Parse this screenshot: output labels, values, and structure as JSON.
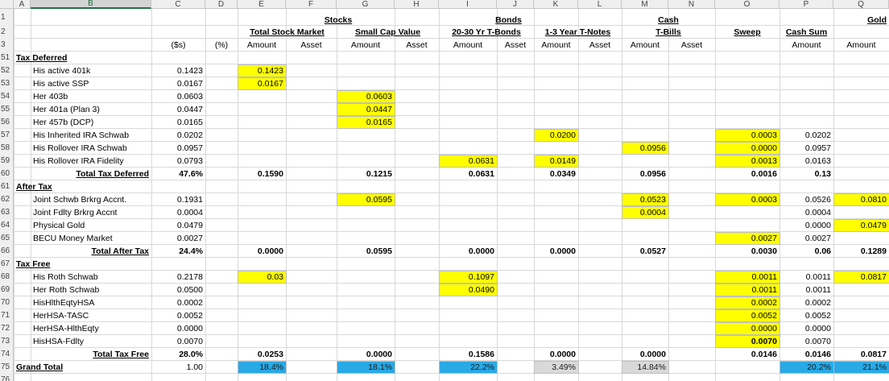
{
  "columns": [
    "A",
    "B",
    "C",
    "D",
    "E",
    "F",
    "G",
    "H",
    "I",
    "J",
    "K",
    "L",
    "M",
    "N",
    "O",
    "P",
    "Q"
  ],
  "selected_column": "B",
  "rows": [
    {
      "row": "1",
      "cells": [
        {
          "col": "E",
          "to": "H",
          "text": "Stocks",
          "bold": true,
          "underline": true,
          "align": "center"
        },
        {
          "col": "I",
          "to": "K",
          "text": "Bonds",
          "bold": true,
          "underline": true,
          "align": "center"
        },
        {
          "col": "M",
          "to": "N",
          "text": "Cash",
          "bold": true,
          "underline": true,
          "align": "center"
        },
        {
          "col": "Q",
          "text": "Gold",
          "bold": true,
          "underline": true,
          "align": "right"
        }
      ]
    },
    {
      "row": "2",
      "cells": [
        {
          "col": "E",
          "to": "F",
          "text": "Total Stock Market",
          "bold": true,
          "underline": true,
          "align": "center"
        },
        {
          "col": "G",
          "to": "H",
          "text": "Small Cap Value",
          "bold": true,
          "underline": true,
          "align": "center"
        },
        {
          "col": "I",
          "to": "J",
          "text": "20-30 Yr T-Bonds",
          "bold": true,
          "underline": true,
          "align": "center"
        },
        {
          "col": "K",
          "to": "L",
          "text": "1-3 Year T-Notes",
          "bold": true,
          "underline": true,
          "align": "center"
        },
        {
          "col": "M",
          "to": "N",
          "text": "T-Bills",
          "bold": true,
          "underline": true,
          "align": "center"
        },
        {
          "col": "O",
          "text": "Sweep",
          "bold": true,
          "underline": true,
          "align": "center"
        },
        {
          "col": "P",
          "text": "Cash Sum",
          "bold": true,
          "underline": true,
          "align": "center"
        }
      ]
    },
    {
      "row": "3",
      "cells": [
        {
          "col": "C",
          "text": "($s)",
          "align": "center"
        },
        {
          "col": "D",
          "text": "(%)",
          "align": "center"
        },
        {
          "col": "E",
          "text": "Amount",
          "align": "center"
        },
        {
          "col": "F",
          "text": "Asset",
          "align": "center"
        },
        {
          "col": "G",
          "text": "Amount",
          "align": "center"
        },
        {
          "col": "H",
          "text": "Asset",
          "align": "center"
        },
        {
          "col": "I",
          "text": "Amount",
          "align": "center"
        },
        {
          "col": "J",
          "text": "Asset",
          "align": "center"
        },
        {
          "col": "K",
          "text": "Amount",
          "align": "center"
        },
        {
          "col": "L",
          "text": "Asset",
          "align": "center"
        },
        {
          "col": "M",
          "text": "Amount",
          "align": "center"
        },
        {
          "col": "N",
          "text": "Asset",
          "align": "center"
        },
        {
          "col": "P",
          "text": "Amount",
          "align": "center"
        },
        {
          "col": "Q",
          "text": "Amount",
          "align": "center"
        }
      ]
    },
    {
      "row": "51",
      "cells": [
        {
          "col": "A",
          "text": "Tax Deferred",
          "bold": true,
          "underline": true
        }
      ]
    },
    {
      "row": "52",
      "cells": [
        {
          "col": "B",
          "text": "His active 401k"
        },
        {
          "col": "C",
          "text": "0.1423"
        },
        {
          "col": "E",
          "text": "0.1423",
          "fill": "#ffff00"
        }
      ]
    },
    {
      "row": "53",
      "cells": [
        {
          "col": "B",
          "text": "His active SSP"
        },
        {
          "col": "C",
          "text": "0.0167"
        },
        {
          "col": "E",
          "text": "0.0167",
          "fill": "#ffff00"
        }
      ]
    },
    {
      "row": "54",
      "cells": [
        {
          "col": "B",
          "text": "Her 403b"
        },
        {
          "col": "C",
          "text": "0.0603"
        },
        {
          "col": "G",
          "text": "0.0603",
          "fill": "#ffff00"
        }
      ]
    },
    {
      "row": "55",
      "cells": [
        {
          "col": "B",
          "text": "Her 401a (Plan 3)"
        },
        {
          "col": "C",
          "text": "0.0447"
        },
        {
          "col": "G",
          "text": "0.0447",
          "fill": "#ffff00"
        }
      ]
    },
    {
      "row": "56",
      "cells": [
        {
          "col": "B",
          "text": "Her 457b (DCP)"
        },
        {
          "col": "C",
          "text": "0.0165"
        },
        {
          "col": "G",
          "text": "0.0165",
          "fill": "#ffff00"
        }
      ]
    },
    {
      "row": "57",
      "cells": [
        {
          "col": "B",
          "text": "His Inherited IRA Schwab"
        },
        {
          "col": "C",
          "text": "0.0202"
        },
        {
          "col": "K",
          "text": "0.0200",
          "fill": "#ffff00"
        },
        {
          "col": "O",
          "text": "0.0003",
          "fill": "#ffff00"
        },
        {
          "col": "P",
          "text": "0.0202"
        }
      ]
    },
    {
      "row": "58",
      "cells": [
        {
          "col": "B",
          "text": "His Rollover IRA Schwab"
        },
        {
          "col": "C",
          "text": "0.0957"
        },
        {
          "col": "M",
          "text": "0.0956",
          "fill": "#ffff00"
        },
        {
          "col": "O",
          "text": "0.0000",
          "fill": "#ffff00"
        },
        {
          "col": "P",
          "text": "0.0957"
        }
      ]
    },
    {
      "row": "59",
      "cells": [
        {
          "col": "B",
          "text": "His Rollover IRA Fidelity"
        },
        {
          "col": "C",
          "text": "0.0793"
        },
        {
          "col": "I",
          "text": "0.0631",
          "fill": "#ffff00"
        },
        {
          "col": "K",
          "text": "0.0149",
          "fill": "#ffff00"
        },
        {
          "col": "O",
          "text": "0.0013",
          "fill": "#ffff00"
        },
        {
          "col": "P",
          "text": "0.0163"
        }
      ]
    },
    {
      "row": "60",
      "cells": [
        {
          "col": "B",
          "text": "Total Tax Deferred",
          "bold": true,
          "underline": true,
          "align": "right"
        },
        {
          "col": "C",
          "text": "47.6%",
          "bold": true
        },
        {
          "col": "E",
          "text": "0.1590",
          "bold": true
        },
        {
          "col": "G",
          "text": "0.1215",
          "bold": true
        },
        {
          "col": "I",
          "text": "0.0631",
          "bold": true
        },
        {
          "col": "K",
          "text": "0.0349",
          "bold": true
        },
        {
          "col": "M",
          "text": "0.0956",
          "bold": true
        },
        {
          "col": "O",
          "text": "0.0016",
          "bold": true
        },
        {
          "col": "P",
          "text": "0.13",
          "bold": true
        }
      ]
    },
    {
      "row": "61",
      "cells": [
        {
          "col": "A",
          "text": "After Tax",
          "bold": true,
          "underline": true
        }
      ]
    },
    {
      "row": "62",
      "cells": [
        {
          "col": "B",
          "text": "Joint Schwb Brkrg Accnt."
        },
        {
          "col": "C",
          "text": "0.1931"
        },
        {
          "col": "G",
          "text": "0.0595",
          "fill": "#ffff00"
        },
        {
          "col": "M",
          "text": "0.0523",
          "fill": "#ffff00"
        },
        {
          "col": "O",
          "text": "0.0003",
          "fill": "#ffff00"
        },
        {
          "col": "P",
          "text": "0.0526"
        },
        {
          "col": "Q",
          "text": "0.0810",
          "fill": "#ffff00"
        }
      ]
    },
    {
      "row": "63",
      "cells": [
        {
          "col": "B",
          "text": "Joint Fdlty Brkrg Accnt"
        },
        {
          "col": "C",
          "text": "0.0004"
        },
        {
          "col": "M",
          "text": "0.0004",
          "fill": "#ffff00"
        },
        {
          "col": "P",
          "text": "0.0004"
        }
      ]
    },
    {
      "row": "64",
      "cells": [
        {
          "col": "B",
          "text": "Physical Gold"
        },
        {
          "col": "C",
          "text": "0.0479"
        },
        {
          "col": "P",
          "text": "0.0000"
        },
        {
          "col": "Q",
          "text": "0.0479",
          "fill": "#ffff00"
        }
      ]
    },
    {
      "row": "65",
      "cells": [
        {
          "col": "B",
          "text": "BECU Money Market"
        },
        {
          "col": "C",
          "text": "0.0027"
        },
        {
          "col": "O",
          "text": "0.0027",
          "fill": "#ffff00"
        },
        {
          "col": "P",
          "text": "0.0027"
        }
      ]
    },
    {
      "row": "66",
      "cells": [
        {
          "col": "B",
          "text": "Total After Tax",
          "bold": true,
          "underline": true,
          "align": "right"
        },
        {
          "col": "C",
          "text": "24.4%",
          "bold": true
        },
        {
          "col": "E",
          "text": "0.0000",
          "bold": true
        },
        {
          "col": "G",
          "text": "0.0595",
          "bold": true
        },
        {
          "col": "I",
          "text": "0.0000",
          "bold": true
        },
        {
          "col": "K",
          "text": "0.0000",
          "bold": true
        },
        {
          "col": "M",
          "text": "0.0527",
          "bold": true
        },
        {
          "col": "O",
          "text": "0.0030",
          "bold": true
        },
        {
          "col": "P",
          "text": "0.06",
          "bold": true
        },
        {
          "col": "Q",
          "text": "0.1289",
          "bold": true
        }
      ]
    },
    {
      "row": "67",
      "cells": [
        {
          "col": "A",
          "text": "Tax Free",
          "bold": true,
          "underline": true
        }
      ]
    },
    {
      "row": "68",
      "cells": [
        {
          "col": "B",
          "text": "His Roth Schwab"
        },
        {
          "col": "C",
          "text": "0.2178"
        },
        {
          "col": "E",
          "text": "0.03",
          "fill": "#ffff00"
        },
        {
          "col": "I",
          "text": "0.1097",
          "fill": "#ffff00"
        },
        {
          "col": "O",
          "text": "0.0011",
          "fill": "#ffff00"
        },
        {
          "col": "P",
          "text": "0.0011"
        },
        {
          "col": "Q",
          "text": "0.0817",
          "fill": "#ffff00"
        }
      ]
    },
    {
      "row": "69",
      "cells": [
        {
          "col": "B",
          "text": "Her Roth Schwab"
        },
        {
          "col": "C",
          "text": "0.0500"
        },
        {
          "col": "I",
          "text": "0.0490",
          "fill": "#ffff00"
        },
        {
          "col": "O",
          "text": "0.0011",
          "fill": "#ffff00"
        },
        {
          "col": "P",
          "text": "0.0011"
        }
      ]
    },
    {
      "row": "70",
      "cells": [
        {
          "col": "B",
          "text": "HisHlthEqtyHSA"
        },
        {
          "col": "C",
          "text": "0.0002"
        },
        {
          "col": "O",
          "text": "0.0002",
          "fill": "#ffff00"
        },
        {
          "col": "P",
          "text": "0.0002"
        }
      ]
    },
    {
      "row": "71",
      "cells": [
        {
          "col": "B",
          "text": "HerHSA-TASC"
        },
        {
          "col": "C",
          "text": "0.0052"
        },
        {
          "col": "O",
          "text": "0.0052",
          "fill": "#ffff00"
        },
        {
          "col": "P",
          "text": "0.0052"
        }
      ]
    },
    {
      "row": "72",
      "cells": [
        {
          "col": "B",
          "text": "HerHSA-HlthEqty"
        },
        {
          "col": "C",
          "text": "0.0000"
        },
        {
          "col": "O",
          "text": "0.0000",
          "fill": "#ffff00"
        },
        {
          "col": "P",
          "text": "0.0000"
        }
      ]
    },
    {
      "row": "73",
      "cells": [
        {
          "col": "B",
          "text": "HisHSA-Fdlty"
        },
        {
          "col": "C",
          "text": "0.0070"
        },
        {
          "col": "O",
          "text": "0.0070",
          "fill": "#ffff00",
          "bold": true
        },
        {
          "col": "P",
          "text": "0.0070"
        }
      ]
    },
    {
      "row": "74",
      "cells": [
        {
          "col": "B",
          "text": "Total Tax Free",
          "bold": true,
          "underline": true,
          "align": "right"
        },
        {
          "col": "C",
          "text": "28.0%",
          "bold": true
        },
        {
          "col": "E",
          "text": "0.0253",
          "bold": true
        },
        {
          "col": "G",
          "text": "0.0000",
          "bold": true
        },
        {
          "col": "I",
          "text": "0.1586",
          "bold": true
        },
        {
          "col": "K",
          "text": "0.0000",
          "bold": true
        },
        {
          "col": "M",
          "text": "0.0000",
          "bold": true
        },
        {
          "col": "O",
          "text": "0.0146",
          "bold": true
        },
        {
          "col": "P",
          "text": "0.0146",
          "bold": true
        },
        {
          "col": "Q",
          "text": "0.0817",
          "bold": true
        }
      ]
    },
    {
      "row": "75",
      "cells": [
        {
          "col": "A",
          "text": "Grand Total",
          "bold": true,
          "underline": true
        },
        {
          "col": "C",
          "text": "1.00"
        },
        {
          "col": "E",
          "text": "18.4%",
          "fill": "#29a9e6"
        },
        {
          "col": "G",
          "text": "18.1%",
          "fill": "#29a9e6"
        },
        {
          "col": "I",
          "text": "22.2%",
          "fill": "#29a9e6"
        },
        {
          "col": "K",
          "text": "3.49%",
          "fill": "#d9d9d9"
        },
        {
          "col": "M",
          "text": "14.84%",
          "fill": "#d9d9d9"
        },
        {
          "col": "P",
          "text": "20.2%",
          "fill": "#29a9e6"
        },
        {
          "col": "Q",
          "text": "21.1%",
          "fill": "#29a9e6"
        }
      ]
    },
    {
      "row": "76",
      "cells": []
    }
  ]
}
